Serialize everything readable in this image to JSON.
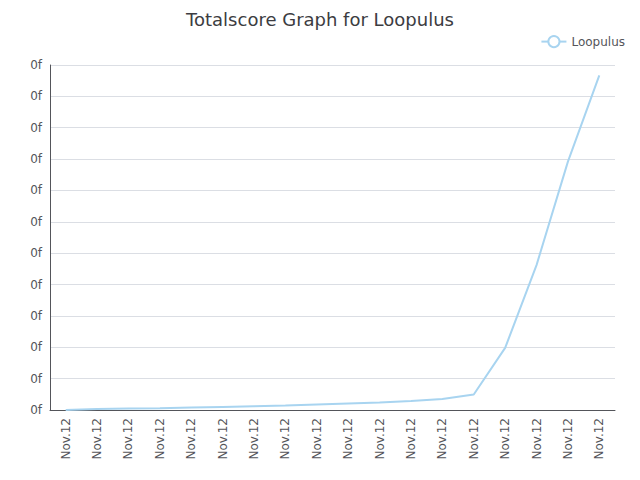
{
  "chart_data": {
    "type": "line",
    "title": "Totalscore Graph for Loopulus",
    "categories": [
      "Nov.12",
      "Nov.12",
      "Nov.12",
      "Nov.12",
      "Nov.12",
      "Nov.12",
      "Nov.12",
      "Nov.12",
      "Nov.12",
      "Nov.12",
      "Nov.12",
      "Nov.12",
      "Nov.12",
      "Nov.12",
      "Nov.12",
      "Nov.12",
      "Nov.12",
      "Nov.12"
    ],
    "series": [
      {
        "name": "Loopulus",
        "color": "#a8d4f0",
        "values": [
          0.0,
          0.003,
          0.004,
          0.005,
          0.007,
          0.009,
          0.011,
          0.013,
          0.016,
          0.019,
          0.022,
          0.026,
          0.032,
          0.045,
          0.18,
          0.42,
          0.72,
          0.97
        ]
      }
    ],
    "ylim": [
      0,
      1
    ],
    "yticks": [
      {
        "value": 0,
        "label": "0f"
      },
      {
        "value": 0.09090909090909091,
        "label": "0f"
      },
      {
        "value": 0.18181818181818182,
        "label": "0f"
      },
      {
        "value": 0.2727272727272727,
        "label": "0f"
      },
      {
        "value": 0.36363636363636365,
        "label": "0f"
      },
      {
        "value": 0.45454545454545453,
        "label": "0f"
      },
      {
        "value": 0.5454545454545454,
        "label": "0f"
      },
      {
        "value": 0.6363636363636364,
        "label": "0f"
      },
      {
        "value": 0.7272727272727273,
        "label": "0f"
      },
      {
        "value": 0.8181818181818182,
        "label": "0f"
      },
      {
        "value": 0.9090909090909091,
        "label": "0f"
      },
      {
        "value": 1,
        "label": "0f"
      }
    ],
    "grid": true,
    "legend": "upper right"
  }
}
